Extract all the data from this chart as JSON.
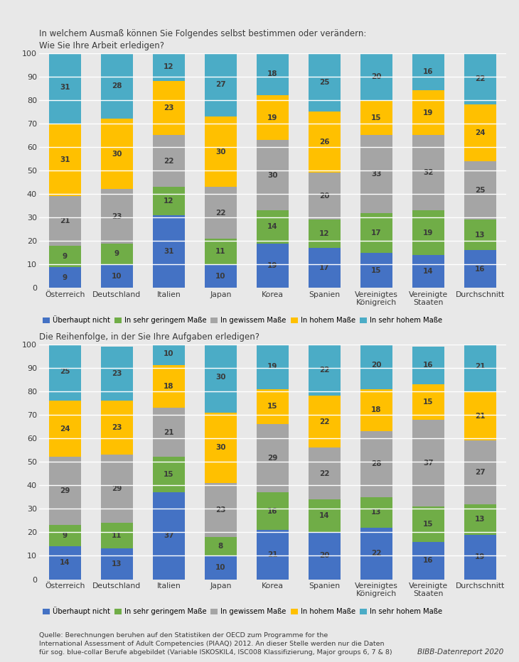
{
  "title1": "In welchem Ausmaß können Sie Folgendes selbst bestimmen oder verändern:\nWie Sie Ihre Arbeit erledigen?",
  "title2": "Die Reihenfolge, in der Sie Ihre Aufgaben erledigen?",
  "categories": [
    "Österreich",
    "Deutschland",
    "Italien",
    "Japan",
    "Korea",
    "Spanien",
    "Vereinigtes\nKönigreich",
    "Vereinigte\nStaaten",
    "Durchschnitt"
  ],
  "chart1": {
    "überhaupt_nicht": [
      9,
      10,
      31,
      10,
      19,
      17,
      15,
      14,
      16
    ],
    "sehr_geringem": [
      9,
      9,
      12,
      11,
      14,
      12,
      17,
      19,
      13
    ],
    "gewissem": [
      21,
      23,
      22,
      22,
      30,
      20,
      33,
      32,
      25
    ],
    "hohem": [
      31,
      30,
      23,
      30,
      19,
      26,
      15,
      19,
      24
    ],
    "sehr_hohem": [
      31,
      28,
      12,
      27,
      18,
      25,
      20,
      16,
      22
    ]
  },
  "chart2": {
    "überhaupt_nicht": [
      14,
      13,
      37,
      10,
      21,
      20,
      22,
      16,
      19
    ],
    "sehr_geringem": [
      9,
      11,
      15,
      8,
      16,
      14,
      13,
      15,
      13
    ],
    "gewissem": [
      29,
      29,
      21,
      23,
      29,
      22,
      28,
      37,
      27
    ],
    "hohem": [
      24,
      23,
      18,
      30,
      15,
      22,
      18,
      15,
      21
    ],
    "sehr_hohem": [
      25,
      23,
      10,
      30,
      19,
      22,
      20,
      16,
      21
    ]
  },
  "colors": {
    "überhaupt_nicht": "#4472C4",
    "sehr_geringem": "#70AD47",
    "gewissem": "#A5A5A5",
    "hohem": "#FFC000",
    "sehr_hohem": "#4BACC6"
  },
  "legend_labels": [
    "Überhaupt nicht",
    "In sehr geringem Maße",
    "In gewissem Maße",
    "In hohem Maße",
    "In sehr hohem Maße"
  ],
  "source_text": "Quelle: Berechnungen beruhen auf den Statistiken der OECD zum Programme for the\nInternational Assessment of Adult Competencies (PIAAQ) 2012. An dieser Stelle werden nur die Daten\nfür sog. blue-collar Berufe abgebildet (Variable ISKOSKIL4, ISC008 Klassifizierung, Major groups 6, 7 & 8)",
  "bibb_text": "BIBB-Datenreport 2020",
  "bg_color": "#E8E8E8"
}
